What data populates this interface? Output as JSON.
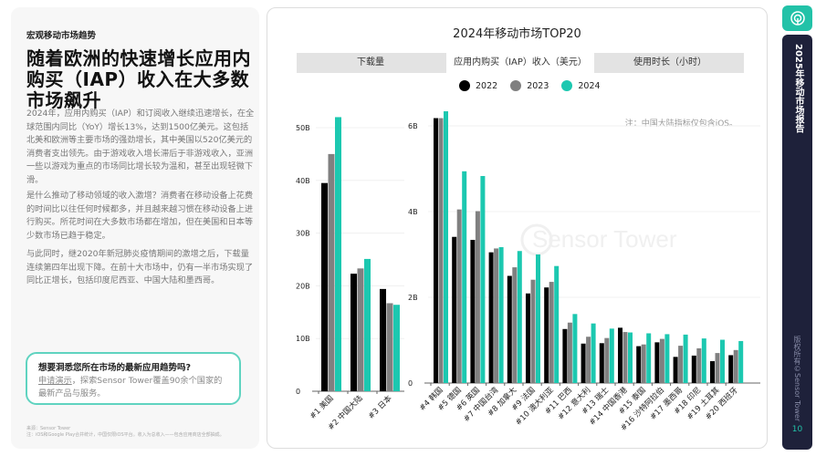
{
  "left": {
    "kicker": "宏观移动市场趋势",
    "headline": "随着欧洲的快速增长应用内购买（IAP）收入在大多数市场飙升",
    "paragraphs": [
      "2024年，应用内购买（IAP）和订阅收入继续迅速增长，在全球范围内同比（YoY）增长13%，达到1500亿美元。这包括北美和欧洲等主要市场的强劲增长，其中美国以520亿美元的消费者支出领先。由于游戏收入增长滞后于非游戏收入，亚洲一些以游戏为重点的市场同比增长较为温和，甚至出现轻微下滑。",
      "是什么推动了移动领域的收入激增？消费者在移动设备上花费的时间比以往任何时候都多，并且越来越习惯在移动设备上进行购买。所花时间在大多数市场都在增加，但在美国和日本等少数市场已趋于稳定。",
      "与此同时，继2020年新冠肺炎疫情期间的激增之后，下载量连续第四年出现下降。在前十大市场中，仍有一半市场实现了同比正增长，包括印度尼西亚、中国大陆和墨西哥。"
    ],
    "cta": {
      "title": "想要洞悉您所在市场的最新应用趋势吗?",
      "link": "申请演示",
      "body": "，探索Sensor Tower覆盖90余个国家的最新产品与服务。"
    },
    "footnote": {
      "source": "来源：Sensor Tower",
      "note": "注：iOS和Google Play合并统计，中国仅限iOS平台。收入为总收入——包含应用商店全部抽成。"
    }
  },
  "chart_panel": {
    "tabs": [
      "下载量",
      "应用内购买（IAP）收入（美元）",
      "使用时长（小时）"
    ],
    "active_tab": 1,
    "note": "注：中国大陆指标仅包含iOS。",
    "watermark": "Sensor Tower"
  },
  "chart_data": [
    {
      "type": "bar",
      "title": "2024年移动市场TOP20",
      "legend_position": "top",
      "categories": [
        "#1 美国",
        "#2 中国大陆",
        "#3 日本"
      ],
      "ylim": [
        0,
        52
      ],
      "yticks": [
        "0",
        "10B",
        "20B",
        "30B",
        "40B",
        "50B"
      ],
      "ytick_values": [
        0,
        10,
        20,
        30,
        40,
        50
      ],
      "grid": true,
      "series": [
        {
          "name": "2022",
          "color": "#000000",
          "values": [
            39.5,
            22.3,
            19.4
          ]
        },
        {
          "name": "2023",
          "color": "#808080",
          "values": [
            45.0,
            23.3,
            16.7
          ]
        },
        {
          "name": "2024",
          "color": "#1cc8b0",
          "values": [
            52.0,
            25.1,
            16.4
          ]
        }
      ]
    },
    {
      "type": "bar",
      "categories": [
        "#4 韩国",
        "#5 德国",
        "#6 英国",
        "#7 中国台湾",
        "#8 加拿大",
        "#9 法国",
        "#10 澳大利亚",
        "#11 巴西",
        "#12 意大利",
        "#13 瑞士",
        "#14 中国香港",
        "#15 泰国",
        "#16 沙特阿拉伯",
        "#17 墨西哥",
        "#18 印尼",
        "#19 土耳其",
        "#20 西班牙"
      ],
      "ylim": [
        0,
        6.3
      ],
      "yticks": [
        "0",
        "2B",
        "4B",
        "6B"
      ],
      "ytick_values": [
        0,
        2,
        4,
        6
      ],
      "grid": true,
      "series": [
        {
          "name": "2022",
          "color": "#000000",
          "values": [
            6.18,
            3.41,
            3.34,
            3.05,
            2.5,
            2.09,
            2.23,
            1.26,
            0.92,
            0.93,
            1.29,
            0.86,
            0.95,
            0.61,
            0.64,
            0.51,
            0.65
          ]
        },
        {
          "name": "2023",
          "color": "#808080",
          "values": [
            6.18,
            4.05,
            4.01,
            3.14,
            2.7,
            2.41,
            2.36,
            1.41,
            1.08,
            1.05,
            1.19,
            0.9,
            1.03,
            0.87,
            0.81,
            0.7,
            0.77
          ]
        },
        {
          "name": "2024",
          "color": "#1cc8b0",
          "values": [
            6.34,
            4.94,
            4.83,
            3.17,
            3.08,
            3.0,
            2.73,
            1.61,
            1.39,
            1.27,
            1.18,
            1.16,
            1.14,
            1.13,
            1.04,
            1.01,
            0.98
          ]
        }
      ]
    }
  ],
  "sidebar": {
    "logo_icon": "sensor-tower-logo-icon",
    "title": "2025年移动市场报告",
    "copyright": "版权所有©Sensor Tower",
    "page": "10",
    "accent": "#22c2a8",
    "bg": "#1e213a"
  }
}
